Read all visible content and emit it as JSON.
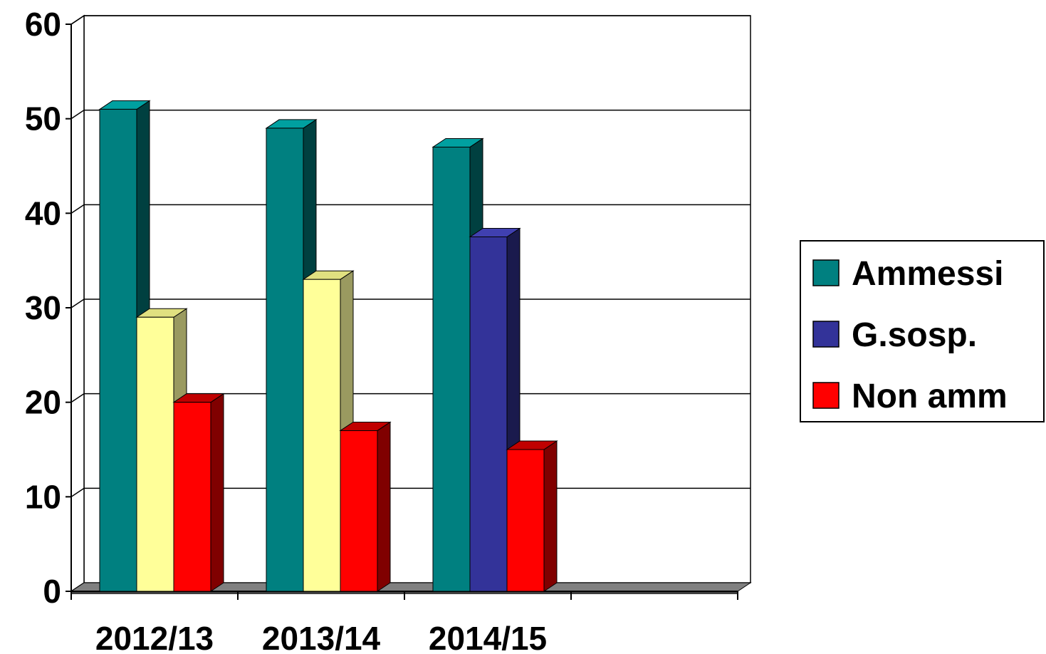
{
  "chart_data": {
    "type": "bar",
    "categories": [
      "2012/13",
      "2013/14",
      "2014/15",
      ""
    ],
    "ylim": [
      0,
      60
    ],
    "yticks": [
      0,
      10,
      20,
      30,
      40,
      50,
      60
    ],
    "grid": true,
    "three_d": true,
    "legend_position": "right",
    "legend": [
      "Ammessi",
      "G.sosp.",
      "Non amm"
    ],
    "title": "",
    "xlabel": "",
    "ylabel": "",
    "bars": [
      [
        {
          "series": "Ammessi",
          "value": 51,
          "color": "#008080",
          "side": "#004040",
          "top": "#00a0a0"
        },
        {
          "series": "",
          "value": 29,
          "color": "#ffff99",
          "side": "#9a9a60",
          "top": "#e0e080"
        },
        {
          "series": "Non amm",
          "value": 20,
          "color": "#ff0000",
          "side": "#800000",
          "top": "#c00000"
        }
      ],
      [
        {
          "series": "Ammessi",
          "value": 49,
          "color": "#008080",
          "side": "#004040",
          "top": "#00a0a0"
        },
        {
          "series": "",
          "value": 33,
          "color": "#ffff99",
          "side": "#9a9a60",
          "top": "#e0e080"
        },
        {
          "series": "Non amm",
          "value": 17,
          "color": "#ff0000",
          "side": "#800000",
          "top": "#c00000"
        }
      ],
      [
        {
          "series": "Ammessi",
          "value": 47,
          "color": "#008080",
          "side": "#004040",
          "top": "#00a0a0"
        },
        {
          "series": "G.sosp.",
          "value": 37.5,
          "color": "#333399",
          "side": "#1a1a4d",
          "top": "#4040b0"
        },
        {
          "series": "Non amm",
          "value": 15,
          "color": "#ff0000",
          "side": "#800000",
          "top": "#c00000"
        }
      ]
    ],
    "legend_colors": [
      "#008080",
      "#333399",
      "#ff0000"
    ],
    "colors": {
      "grid": "#000000",
      "floor": "#808080",
      "floor_side": "#404040",
      "background": "#ffffff"
    }
  }
}
